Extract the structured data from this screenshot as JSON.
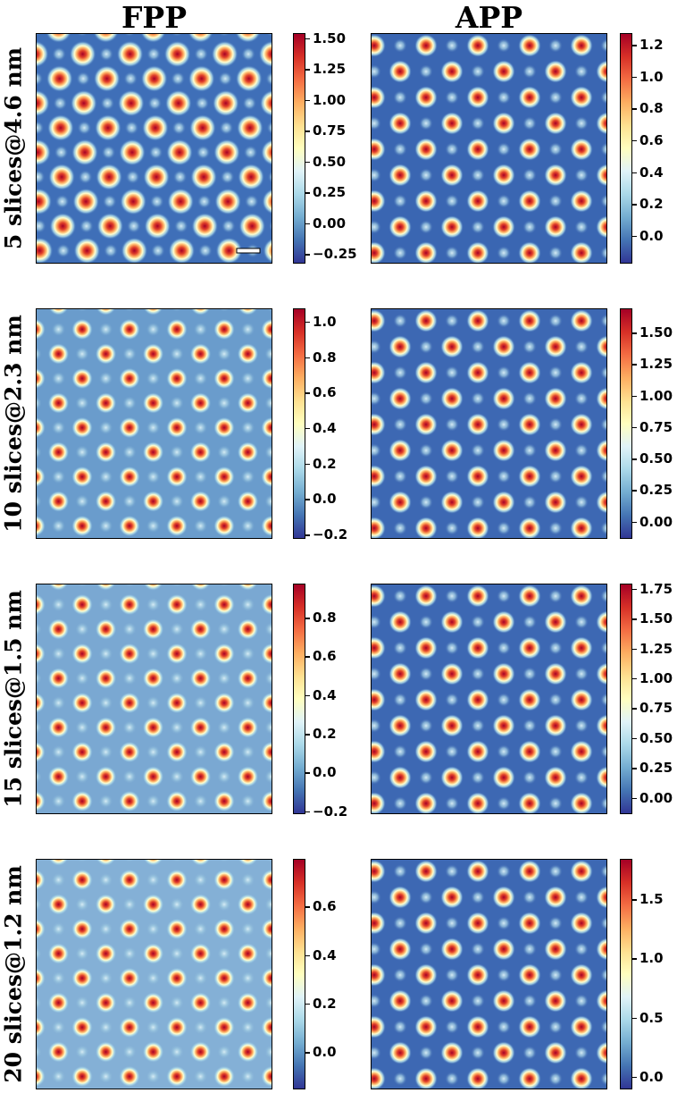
{
  "columns": [
    "FPP",
    "APP"
  ],
  "rows": [
    "5 slices@4.6 nm",
    "10 slices@2.3 nm",
    "15 slices@1.5 nm",
    "20 slices@1.2 nm"
  ],
  "chart_data": {
    "type": "heatmap",
    "colormap": "RdYlBu_r",
    "scale_bar": "shown in first panel (no label)",
    "panels": [
      {
        "row": 0,
        "col": "FPP",
        "range": [
          -0.32,
          1.55
        ],
        "ticks": [
          "−0.25",
          "0.00",
          "0.25",
          "0.50",
          "0.75",
          "1.00",
          "1.25",
          "1.50"
        ],
        "tick_values": [
          -0.25,
          0,
          0.25,
          0.5,
          0.75,
          1,
          1.25,
          1.5
        ],
        "bg": "#3f6fb8"
      },
      {
        "row": 0,
        "col": "APP",
        "range": [
          -0.17,
          1.28
        ],
        "ticks": [
          "0.0",
          "0.2",
          "0.4",
          "0.6",
          "0.8",
          "1.0",
          "1.2"
        ],
        "tick_values": [
          0,
          0.2,
          0.4,
          0.6,
          0.8,
          1.0,
          1.2
        ],
        "bg": "#3a66b2"
      },
      {
        "row": 1,
        "col": "FPP",
        "range": [
          -0.22,
          1.08
        ],
        "ticks": [
          "−0.2",
          "0.0",
          "0.2",
          "0.4",
          "0.6",
          "0.8",
          "1.0"
        ],
        "tick_values": [
          -0.2,
          0,
          0.2,
          0.4,
          0.6,
          0.8,
          1.0
        ],
        "bg": "#6a9ccc"
      },
      {
        "row": 1,
        "col": "APP",
        "range": [
          -0.13,
          1.7
        ],
        "ticks": [
          "0.00",
          "0.25",
          "0.50",
          "0.75",
          "1.00",
          "1.25",
          "1.50"
        ],
        "tick_values": [
          0,
          0.25,
          0.5,
          0.75,
          1,
          1.25,
          1.5
        ],
        "bg": "#3d68b3"
      },
      {
        "row": 2,
        "col": "FPP",
        "range": [
          -0.21,
          0.98
        ],
        "ticks": [
          "−0.2",
          "0.0",
          "0.2",
          "0.4",
          "0.6",
          "0.8"
        ],
        "tick_values": [
          -0.2,
          0,
          0.2,
          0.4,
          0.6,
          0.8
        ],
        "bg": "#7aa8d2"
      },
      {
        "row": 2,
        "col": "APP",
        "range": [
          -0.13,
          1.8
        ],
        "ticks": [
          "0.00",
          "0.25",
          "0.50",
          "0.75",
          "1.00",
          "1.25",
          "1.50",
          "1.75"
        ],
        "tick_values": [
          0,
          0.25,
          0.5,
          0.75,
          1,
          1.25,
          1.5,
          1.75
        ],
        "bg": "#3d68b3"
      },
      {
        "row": 3,
        "col": "FPP",
        "range": [
          -0.15,
          0.8
        ],
        "ticks": [
          "0.0",
          "0.2",
          "0.4",
          "0.6"
        ],
        "tick_values": [
          0,
          0.2,
          0.4,
          0.6
        ],
        "bg": "#84b0d6"
      },
      {
        "row": 3,
        "col": "APP",
        "range": [
          -0.1,
          1.85
        ],
        "ticks": [
          "0.0",
          "0.5",
          "1.0",
          "1.5"
        ],
        "tick_values": [
          0,
          0.5,
          1.0,
          1.5
        ],
        "bg": "#3d68b3"
      }
    ]
  }
}
